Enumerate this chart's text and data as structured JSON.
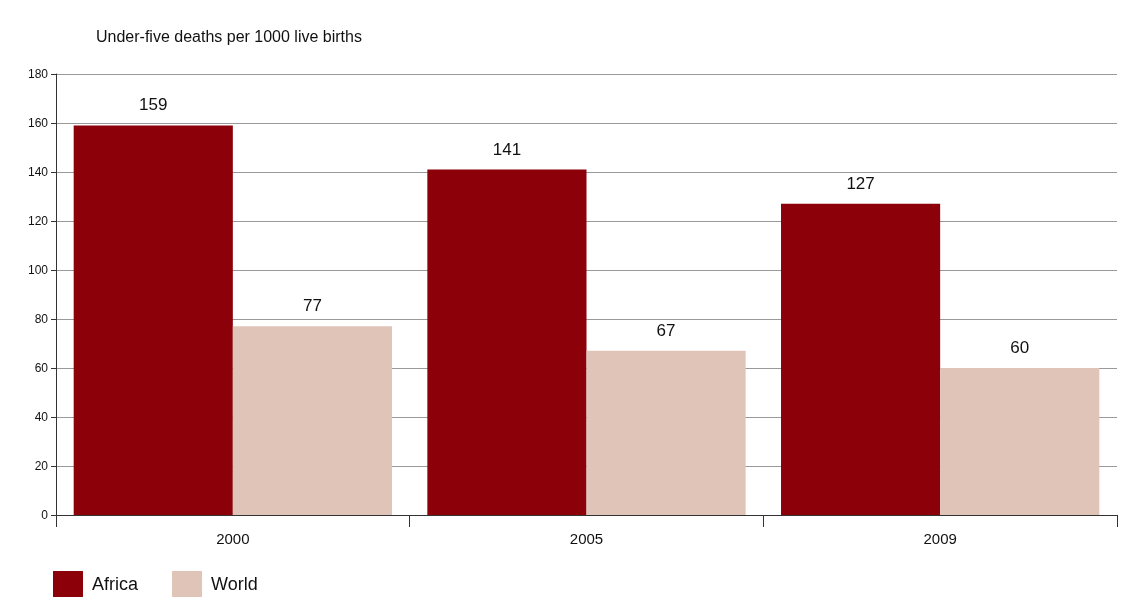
{
  "chart_data": {
    "type": "bar",
    "ylabel": "Under-five deaths per 1000 live births",
    "categories": [
      "2000",
      "2005",
      "2009"
    ],
    "series": [
      {
        "name": "Africa",
        "color": "#8b0009",
        "values": [
          159,
          141,
          127
        ]
      },
      {
        "name": "World",
        "color": "#e0c4b8",
        "values": [
          77,
          67,
          60
        ]
      }
    ],
    "ylim": [
      0,
      180
    ],
    "yticks": [
      0,
      20,
      40,
      60,
      80,
      100,
      120,
      140,
      160,
      180
    ],
    "grid": "y",
    "legend": "bottom left",
    "data_labels": true
  }
}
